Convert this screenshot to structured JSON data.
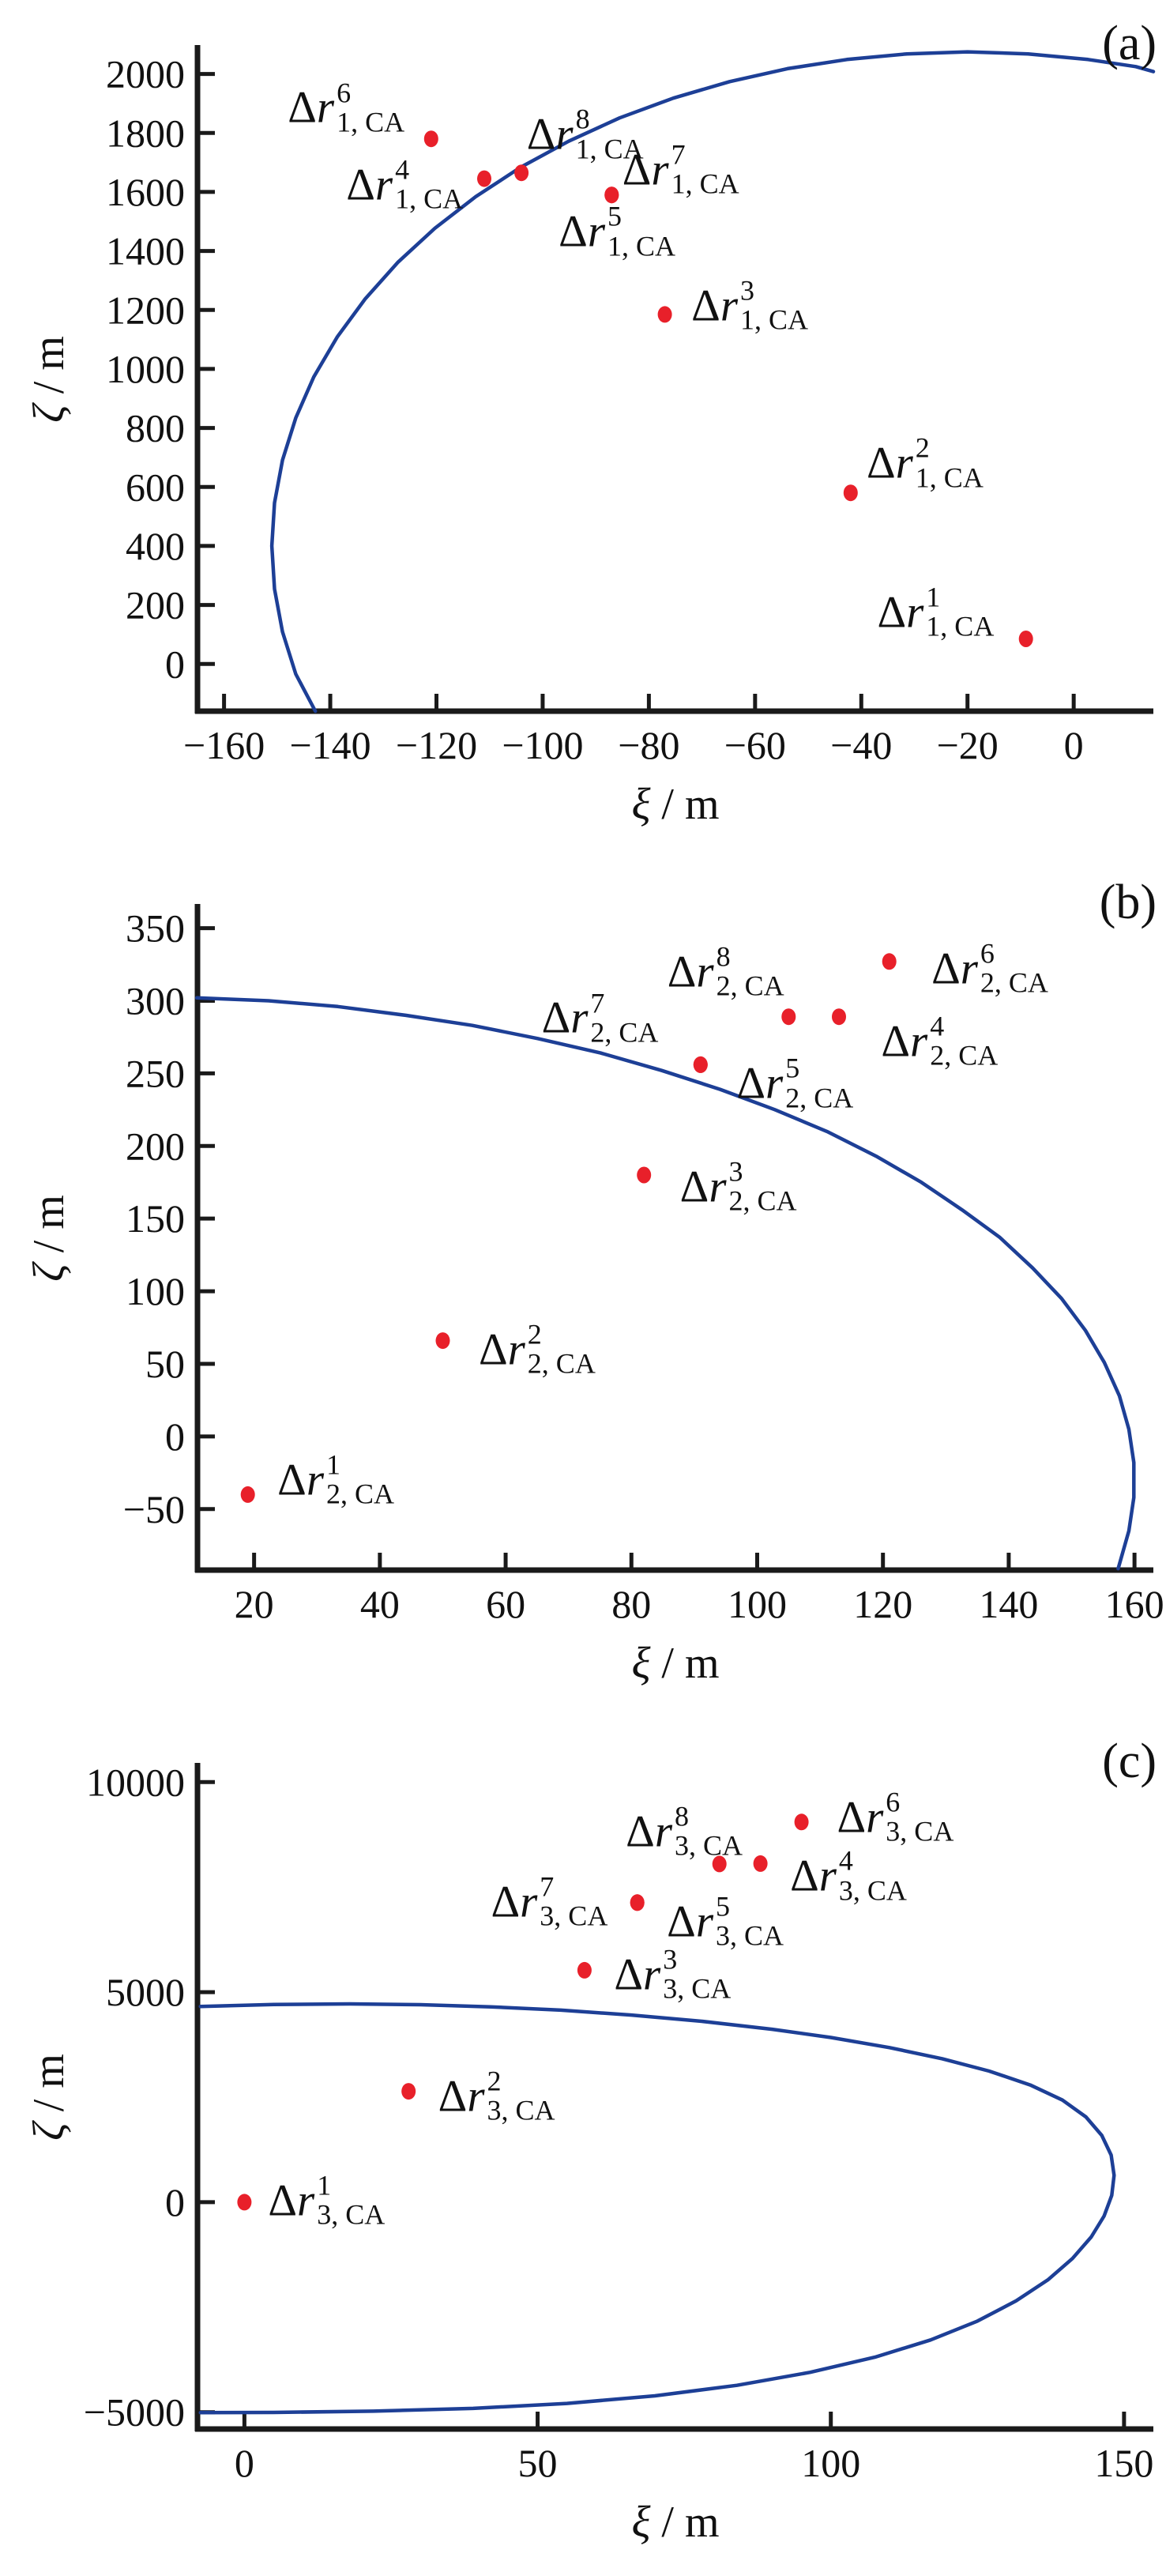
{
  "colors": {
    "dot": "#e8202a",
    "curve": "#1d3f96",
    "axis": "#1a1a1a",
    "text": "#111111"
  },
  "point_label_delta": "Δ",
  "point_label_r": "r",
  "chart_data": [
    {
      "type": "scatter",
      "tag": "(a)",
      "xlabel_sym": "ξ",
      "ylabel_sym": "ζ",
      "unit_suffix": " / m",
      "xlim": [
        -165,
        15
      ],
      "ylim": [
        -160,
        2090
      ],
      "xticks": [
        -160,
        -140,
        -120,
        -100,
        -80,
        -60,
        -40,
        -20,
        0
      ],
      "yticks": [
        0,
        200,
        400,
        600,
        800,
        1000,
        1200,
        1400,
        1600,
        1800,
        2000
      ],
      "grid": false,
      "legend": null,
      "point_sub": "1, CA",
      "points": [
        {
          "sup": "1",
          "x": -9,
          "y": 85,
          "label_x": -26,
          "label_y": 175
        },
        {
          "sup": "2",
          "x": -42,
          "y": 580,
          "label_x": -28,
          "label_y": 680
        },
        {
          "sup": "3",
          "x": -77,
          "y": 1185,
          "label_x": -61,
          "label_y": 1215
        },
        {
          "sup": "4",
          "x": -111,
          "y": 1645,
          "label_x": -126,
          "label_y": 1625
        },
        {
          "sup": "5",
          "x": -87,
          "y": 1590,
          "label_x": -86,
          "label_y": 1465
        },
        {
          "sup": "6",
          "x": -121,
          "y": 1780,
          "label_x": -137,
          "label_y": 1885
        },
        {
          "sup": "7",
          "x": -87,
          "y": 1590,
          "label_x": -74,
          "label_y": 1675
        },
        {
          "sup": "8",
          "x": -104,
          "y": 1665,
          "label_x": -92,
          "label_y": 1795
        }
      ],
      "curve": [
        [
          -142.8,
          -160
        ],
        [
          -146.5,
          -34
        ],
        [
          -149.0,
          109
        ],
        [
          -150.5,
          254
        ],
        [
          -151.0,
          400
        ],
        [
          -150.5,
          546
        ],
        [
          -149.0,
          691
        ],
        [
          -146.5,
          834
        ],
        [
          -143.1,
          973
        ],
        [
          -138.7,
          1108
        ],
        [
          -133.4,
          1238
        ],
        [
          -127.3,
          1361
        ],
        [
          -120.3,
          1477
        ],
        [
          -112.6,
          1584
        ],
        [
          -104.2,
          1683
        ],
        [
          -95.1,
          1772
        ],
        [
          -85.5,
          1851
        ],
        [
          -75.4,
          1918
        ],
        [
          -64.8,
          1974
        ],
        [
          -53.9,
          2018
        ],
        [
          -42.7,
          2049
        ],
        [
          -31.4,
          2068
        ],
        [
          -20.0,
          2075
        ],
        [
          -8.6,
          2068
        ],
        [
          2.7,
          2049
        ],
        [
          11.7,
          2025
        ],
        [
          15.0,
          2008
        ]
      ]
    },
    {
      "type": "scatter",
      "tag": "(b)",
      "xlabel_sym": "ξ",
      "ylabel_sym": "ζ",
      "unit_suffix": " / m",
      "xlim": [
        11,
        163
      ],
      "ylim": [
        -92,
        365
      ],
      "xticks": [
        20,
        40,
        60,
        80,
        100,
        120,
        140,
        160
      ],
      "yticks": [
        -50,
        0,
        50,
        100,
        150,
        200,
        250,
        300,
        350
      ],
      "grid": false,
      "legend": null,
      "point_sub": "2, CA",
      "points": [
        {
          "sup": "1",
          "x": 19,
          "y": -40,
          "label_x": 33,
          "label_y": -30
        },
        {
          "sup": "2",
          "x": 50,
          "y": 66,
          "label_x": 65,
          "label_y": 60
        },
        {
          "sup": "3",
          "x": 82,
          "y": 180,
          "label_x": 97,
          "label_y": 172
        },
        {
          "sup": "4",
          "x": 113,
          "y": 289,
          "label_x": 129,
          "label_y": 272
        },
        {
          "sup": "5",
          "x": 91,
          "y": 256,
          "label_x": 106,
          "label_y": 243
        },
        {
          "sup": "6",
          "x": 121,
          "y": 327,
          "label_x": 137,
          "label_y": 322
        },
        {
          "sup": "7",
          "x": 91,
          "y": 256,
          "label_x": 75,
          "label_y": 288
        },
        {
          "sup": "8",
          "x": 105,
          "y": 289,
          "label_x": 95,
          "label_y": 320
        }
      ],
      "curve": [
        [
          10.9,
          302
        ],
        [
          22.3,
          300
        ],
        [
          33.3,
          296
        ],
        [
          44.1,
          290
        ],
        [
          54.7,
          283
        ],
        [
          65.1,
          274
        ],
        [
          75.1,
          264
        ],
        [
          84.8,
          252
        ],
        [
          94.1,
          239
        ],
        [
          102.8,
          225
        ],
        [
          111.1,
          210
        ],
        [
          118.9,
          193
        ],
        [
          126.1,
          175
        ],
        [
          132.6,
          156
        ],
        [
          138.6,
          137
        ],
        [
          143.8,
          116
        ],
        [
          148.4,
          95
        ],
        [
          152.2,
          73
        ],
        [
          155.2,
          51
        ],
        [
          157.6,
          28
        ],
        [
          159.1,
          5
        ],
        [
          159.9,
          -18
        ],
        [
          159.9,
          -42
        ],
        [
          159.1,
          -65
        ],
        [
          157.6,
          -88
        ],
        [
          157.4,
          -91
        ]
      ]
    },
    {
      "type": "scatter",
      "tag": "(c)",
      "xlabel_sym": "ξ",
      "ylabel_sym": "ζ",
      "unit_suffix": " / m",
      "xlim": [
        -8,
        155
      ],
      "ylim": [
        -5400,
        10400
      ],
      "xticks": [
        0,
        50,
        100,
        150
      ],
      "yticks": [
        -5000,
        0,
        5000,
        10000
      ],
      "grid": false,
      "legend": null,
      "point_sub": "3, CA",
      "points": [
        {
          "sup": "1",
          "x": 0,
          "y": 0,
          "label_x": 14,
          "label_y": 40
        },
        {
          "sup": "2",
          "x": 28,
          "y": 2640,
          "label_x": 43,
          "label_y": 2520
        },
        {
          "sup": "3",
          "x": 58,
          "y": 5520,
          "label_x": 73,
          "label_y": 5420
        },
        {
          "sup": "4",
          "x": 88,
          "y": 8060,
          "label_x": 103,
          "label_y": 7760
        },
        {
          "sup": "5",
          "x": 67,
          "y": 7130,
          "label_x": 82,
          "label_y": 6680
        },
        {
          "sup": "6",
          "x": 95,
          "y": 9050,
          "label_x": 111,
          "label_y": 9160
        },
        {
          "sup": "7",
          "x": 67,
          "y": 7130,
          "label_x": 52,
          "label_y": 7150
        },
        {
          "sup": "8",
          "x": 81,
          "y": 8050,
          "label_x": 75,
          "label_y": 8820
        }
      ],
      "curve": [
        [
          -7.5,
          4660
        ],
        [
          5,
          4705
        ],
        [
          18,
          4720
        ],
        [
          30,
          4700
        ],
        [
          42,
          4650
        ],
        [
          54,
          4570
        ],
        [
          66,
          4455
        ],
        [
          78,
          4305
        ],
        [
          90,
          4115
        ],
        [
          100,
          3920
        ],
        [
          110,
          3680
        ],
        [
          119,
          3415
        ],
        [
          127,
          3120
        ],
        [
          134,
          2790
        ],
        [
          139.5,
          2430
        ],
        [
          143.5,
          2030
        ],
        [
          146.2,
          1590
        ],
        [
          147.8,
          1120
        ],
        [
          148.3,
          640
        ],
        [
          147.9,
          160
        ],
        [
          146.6,
          -330
        ],
        [
          144.4,
          -830
        ],
        [
          141.2,
          -1340
        ],
        [
          137,
          -1850
        ],
        [
          131.6,
          -2350
        ],
        [
          125,
          -2830
        ],
        [
          117,
          -3280
        ],
        [
          107.5,
          -3690
        ],
        [
          96.5,
          -4050
        ],
        [
          84,
          -4360
        ],
        [
          70,
          -4610
        ],
        [
          55,
          -4790
        ],
        [
          39,
          -4910
        ],
        [
          22,
          -4975
        ],
        [
          5,
          -5005
        ],
        [
          -7.5,
          -5010
        ]
      ]
    }
  ]
}
